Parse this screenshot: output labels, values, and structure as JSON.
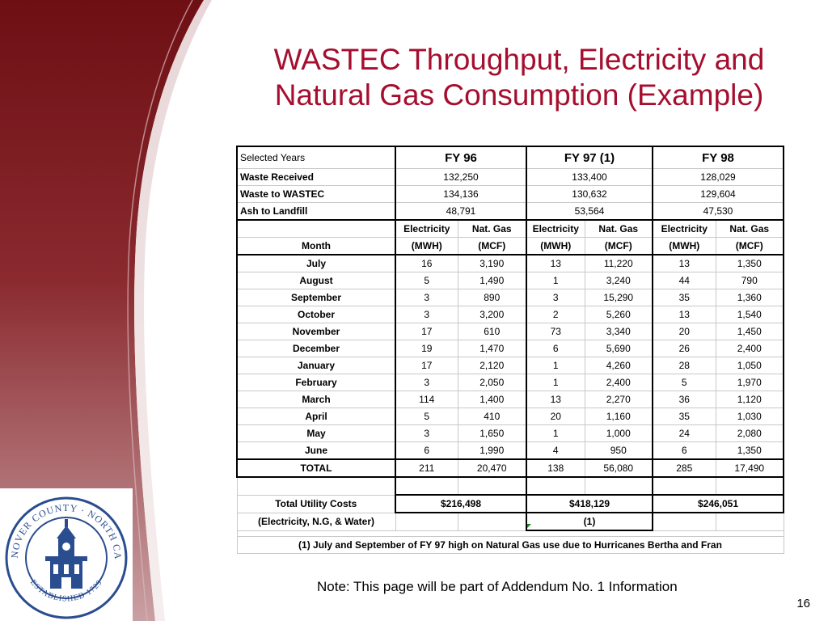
{
  "title": {
    "line1": "WASTEC Throughput, Electricity and",
    "line2": "Natural Gas Consumption (Example)"
  },
  "seal": {
    "top_text": "NEW HANOVER COUNTY · NORTH CAROLINA",
    "bottom_text": "ESTABLISHED 1729"
  },
  "table": {
    "selected_years_label": "Selected Years",
    "years": [
      "FY 96",
      "FY 97 (1)",
      "FY 98"
    ],
    "summary_rows": [
      {
        "label": "Waste Received",
        "values": [
          "132,250",
          "133,400",
          "128,029"
        ]
      },
      {
        "label": "Waste to WASTEC",
        "values": [
          "134,136",
          "130,632",
          "129,604"
        ]
      },
      {
        "label": "Ash to Landfill",
        "values": [
          "48,791",
          "53,564",
          "47,530"
        ]
      }
    ],
    "sub_headers": [
      "Electricity",
      "Nat. Gas",
      "Electricity",
      "Nat. Gas",
      "Electricity",
      "Nat. Gas"
    ],
    "month_label": "Month",
    "units": [
      "(MWH)",
      "(MCF)",
      "(MWH)",
      "(MCF)",
      "(MWH)",
      "(MCF)"
    ],
    "months": [
      {
        "name": "July",
        "values": [
          "16",
          "3,190",
          "13",
          "11,220",
          "13",
          "1,350"
        ]
      },
      {
        "name": "August",
        "values": [
          "5",
          "1,490",
          "1",
          "3,240",
          "44",
          "790"
        ]
      },
      {
        "name": "September",
        "values": [
          "3",
          "890",
          "3",
          "15,290",
          "35",
          "1,360"
        ]
      },
      {
        "name": "October",
        "values": [
          "3",
          "3,200",
          "2",
          "5,260",
          "13",
          "1,540"
        ]
      },
      {
        "name": "November",
        "values": [
          "17",
          "610",
          "73",
          "3,340",
          "20",
          "1,450"
        ]
      },
      {
        "name": "December",
        "values": [
          "19",
          "1,470",
          "6",
          "5,690",
          "26",
          "2,400"
        ]
      },
      {
        "name": "January",
        "values": [
          "17",
          "2,120",
          "1",
          "4,260",
          "28",
          "1,050"
        ]
      },
      {
        "name": "February",
        "values": [
          "3",
          "2,050",
          "1",
          "2,400",
          "5",
          "1,970"
        ]
      },
      {
        "name": "March",
        "values": [
          "114",
          "1,400",
          "13",
          "2,270",
          "36",
          "1,120"
        ]
      },
      {
        "name": "April",
        "values": [
          "5",
          "410",
          "20",
          "1,160",
          "35",
          "1,030"
        ]
      },
      {
        "name": "May",
        "values": [
          "3",
          "1,650",
          "1",
          "1,000",
          "24",
          "2,080"
        ]
      },
      {
        "name": "June",
        "values": [
          "6",
          "1,990",
          "4",
          "950",
          "6",
          "1,350"
        ]
      }
    ],
    "total": {
      "label": "TOTAL",
      "values": [
        "211",
        "20,470",
        "138",
        "56,080",
        "285",
        "17,490"
      ]
    },
    "utility_label": "Total Utility Costs",
    "utility_values": [
      "$216,498",
      "$418,129",
      "$246,051"
    ],
    "utility_sub_label": "(Electricity, N.G, & Water)",
    "utility_sub_note": "(1)",
    "footnote": "(1) July and September of FY 97 high on Natural Gas use due to Hurricanes Bertha and Fran"
  },
  "note": "Note: This page will be part of Addendum No. 1 Information",
  "page_number": "16",
  "colors": {
    "title": "#a50e2f",
    "sidebar_dark": "#7a1218",
    "sidebar_light": "#c79a9d",
    "seal_blue": "#2a4d8f"
  }
}
